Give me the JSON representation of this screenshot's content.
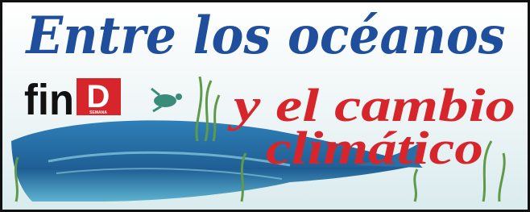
{
  "header": {
    "title": "Entre los océanos",
    "subtitle_line1": "y el cambio",
    "subtitle_line2": "climático"
  },
  "logo": {
    "word": "fin",
    "letter": "D",
    "tag": "SEMANA"
  }
}
